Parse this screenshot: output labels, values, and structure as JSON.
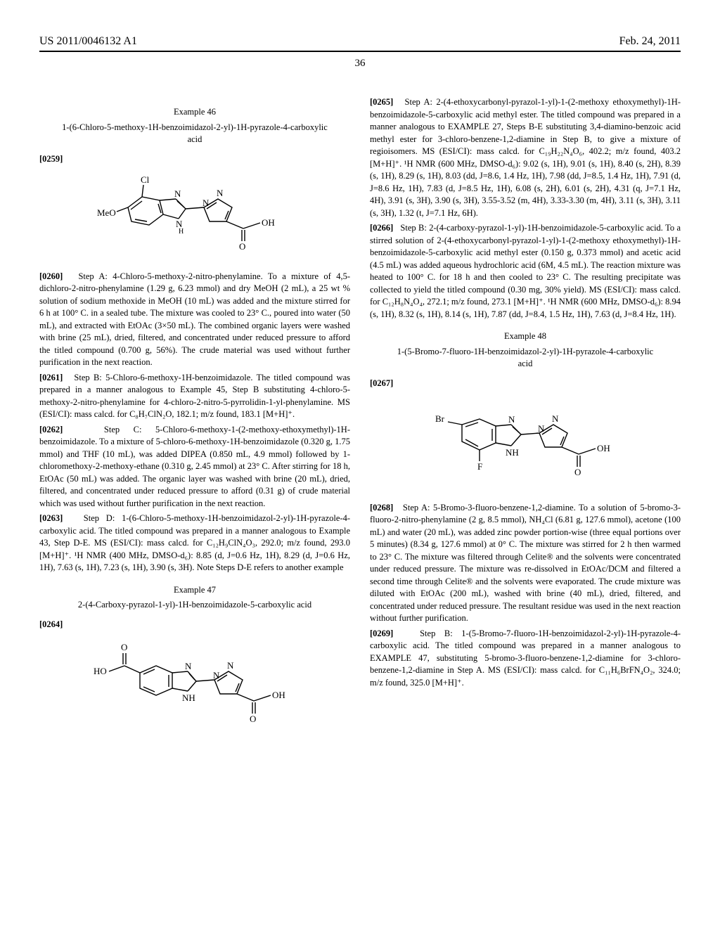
{
  "header": {
    "left": "US 2011/0046132 A1",
    "right": "Feb. 24, 2011"
  },
  "pagenum": "36",
  "left": {
    "ex46": {
      "label": "Example 46",
      "title": "1-(6-Chloro-5-methoxy-1H-benzoimidazol-2-yl)-1H-pyrazole-4-carboxylic acid",
      "p0259": "[0259]",
      "p0260": "[0260]   Step A: 4-Chloro-5-methoxy-2-nitro-phenylamine. To a mixture of 4,5-dichloro-2-nitro-phenylamine (1.29 g, 6.23 mmol) and dry MeOH (2 mL), a 25 wt % solution of sodium methoxide in MeOH (10 mL) was added and the mixture stirred for 6 h at 100° C. in a sealed tube. The mixture was cooled to 23° C., poured into water (50 mL), and extracted with EtOAc (3×50 mL). The combined organic layers were washed with brine (25 mL), dried, filtered, and concentrated under reduced pressure to afford the titled compound (0.700 g, 56%). The crude material was used without further purification in the next reaction.",
      "p0261": "[0261]   Step B: 5-Chloro-6-methoxy-1H-benzoimidazole. The titled compound was prepared in a manner analogous to Example 45, Step B substituting 4-chloro-5-methoxy-2-nitro-phenylamine for 4-chloro-2-nitro-5-pyrrolidin-1-yl-phenylamine. MS (ESI/CI): mass calcd. for C₈H₇ClN₂O, 182.1; m/z found, 183.1 [M+H]⁺.",
      "p0262": "[0262]   Step C: 5-Chloro-6-methoxy-1-(2-methoxy-ethoxymethyl)-1H-benzoimidazole. To a mixture of 5-chloro-6-methoxy-1H-benzoimidazole (0.320 g, 1.75 mmol) and THF (10 mL), was added DIPEA (0.850 mL, 4.9 mmol) followed by 1-chloromethoxy-2-methoxy-ethane (0.310 g, 2.45 mmol) at 23° C. After stirring for 18 h, EtOAc (50 mL) was added. The organic layer was washed with brine (20 mL), dried, filtered, and concentrated under reduced pressure to afford (0.31 g) of crude material which was used without further purification in the next reaction.",
      "p0263": "[0263]   Step D: 1-(6-Chloro-5-methoxy-1H-benzoimidazol-2-yl)-1H-pyrazole-4-carboxylic acid. The titled compound was prepared in a manner analogous to Example 43, Step D-E. MS (ESI/CI): mass calcd. for C₁₂H₉ClN₄O₃, 292.0; m/z found, 293.0 [M+H]⁺. ¹H NMR (400 MHz, DMSO-d₆): 8.85 (d, J=0.6 Hz, 1H), 8.29 (d, J=0.6 Hz, 1H), 7.63 (s, 1H), 7.23 (s, 1H), 3.90 (s, 3H). Note Steps D-E refers to another example"
    },
    "ex47": {
      "label": "Example 47",
      "title": "2-(4-Carboxy-pyrazol-1-yl)-1H-benzoimidazole-5-carboxylic acid",
      "p0264": "[0264]"
    }
  },
  "right": {
    "p0265": "[0265]   Step A: 2-(4-ethoxycarbonyl-pyrazol-1-yl)-1-(2-methoxy ethoxymethyl)-1H-benzoimidazole-5-carboxylic acid methyl ester. The titled compound was prepared in a manner analogous to EXAMPLE 27, Steps B-E substituting 3,4-diamino-benzoic acid methyl ester for 3-chloro-benzene-1,2-diamine in Step B, to give a mixture of regioisomers. MS (ESI/CI): mass calcd. for C₁₉H₂₂N₄O₆, 402.2; m/z found, 403.2 [M+H]⁺. ¹H NMR (600 MHz, DMSO-d₆): 9.02 (s, 1H), 9.01 (s, 1H), 8.40 (s, 2H), 8.39 (s, 1H), 8.29 (s, 1H), 8.03 (dd, J=8.6, 1.4 Hz, 1H), 7.98 (dd, J=8.5, 1.4 Hz, 1H), 7.91 (d, J=8.6 Hz, 1H), 7.83 (d, J=8.5 Hz, 1H), 6.08 (s, 2H), 6.01 (s, 2H), 4.31 (q, J=7.1 Hz, 4H), 3.91 (s, 3H), 3.90 (s, 3H), 3.55-3.52 (m, 4H), 3.33-3.30 (m, 4H), 3.11 (s, 3H), 3.11 (s, 3H), 1.32 (t, J=7.1 Hz, 6H).",
    "p0266": "[0266]   Step B: 2-(4-carboxy-pyrazol-1-yl)-1H-benzoimidazole-5-carboxylic acid. To a stirred solution of 2-(4-ethoxycarbonyl-pyrazol-1-yl)-1-(2-methoxy ethoxymethyl)-1H-benzoimidazole-5-carboxylic acid methyl ester (0.150 g, 0.373 mmol) and acetic acid (4.5 mL) was added aqueous hydrochloric acid (6M, 4.5 mL). The reaction mixture was heated to 100° C. for 18 h and then cooled to 23° C. The resulting precipitate was collected to yield the titled compound (0.30 mg, 30% yield). MS (ESI/CI): mass calcd. for C₁₂H₈N₄O₄, 272.1; m/z found, 273.1 [M+H]⁺. ¹H NMR (600 MHz, DMSO-d₆): 8.94 (s, 1H), 8.32 (s, 1H), 8.14 (s, 1H), 7.87 (dd, J=8.4, 1.5 Hz, 1H), 7.63 (d, J=8.4 Hz, 1H).",
    "ex48": {
      "label": "Example 48",
      "title": "1-(5-Bromo-7-fluoro-1H-benzoimidazol-2-yl)-1H-pyrazole-4-carboxylic acid",
      "p0267": "[0267]",
      "p0268": "[0268]   Step A: 5-Bromo-3-fluoro-benzene-1,2-diamine. To a solution of 5-bromo-3-fluoro-2-nitro-phenylamine (2 g, 8.5 mmol), NH₄Cl (6.81 g, 127.6 mmol), acetone (100 mL) and water (20 mL), was added zinc powder portion-wise (three equal portions over 5 minutes) (8.34 g, 127.6 mmol) at 0° C. The mixture was stirred for 2 h then warmed to 23° C. The mixture was filtered through Celite® and the solvents were concentrated under reduced pressure. The mixture was re-dissolved in EtOAc/DCM and filtered a second time through Celite® and the solvents were evaporated. The crude mixture was diluted with EtOAc (200 mL), washed with brine (40 mL), dried, filtered, and concentrated under reduced pressure. The resultant residue was used in the next reaction without further purification.",
      "p0269": "[0269]   Step B: 1-(5-Bromo-7-fluoro-1H-benzoimidazol-2-yl)-1H-pyrazole-4-carboxylic acid. The titled compound was prepared in a manner analogous to EXAMPLE 47, substituting 5-bromo-3-fluoro-benzene-1,2-diamine for 3-chloro-benzene-1,2-diamine in Step A. MS (ESI/CI): mass calcd. for C₁₁H₆BrFN₄O₂, 324.0; m/z found, 325.0 [M+H]⁺."
    }
  },
  "svg": {
    "stroke": "#000000",
    "stroke_width": 1.4,
    "font": "13px Times New Roman"
  }
}
